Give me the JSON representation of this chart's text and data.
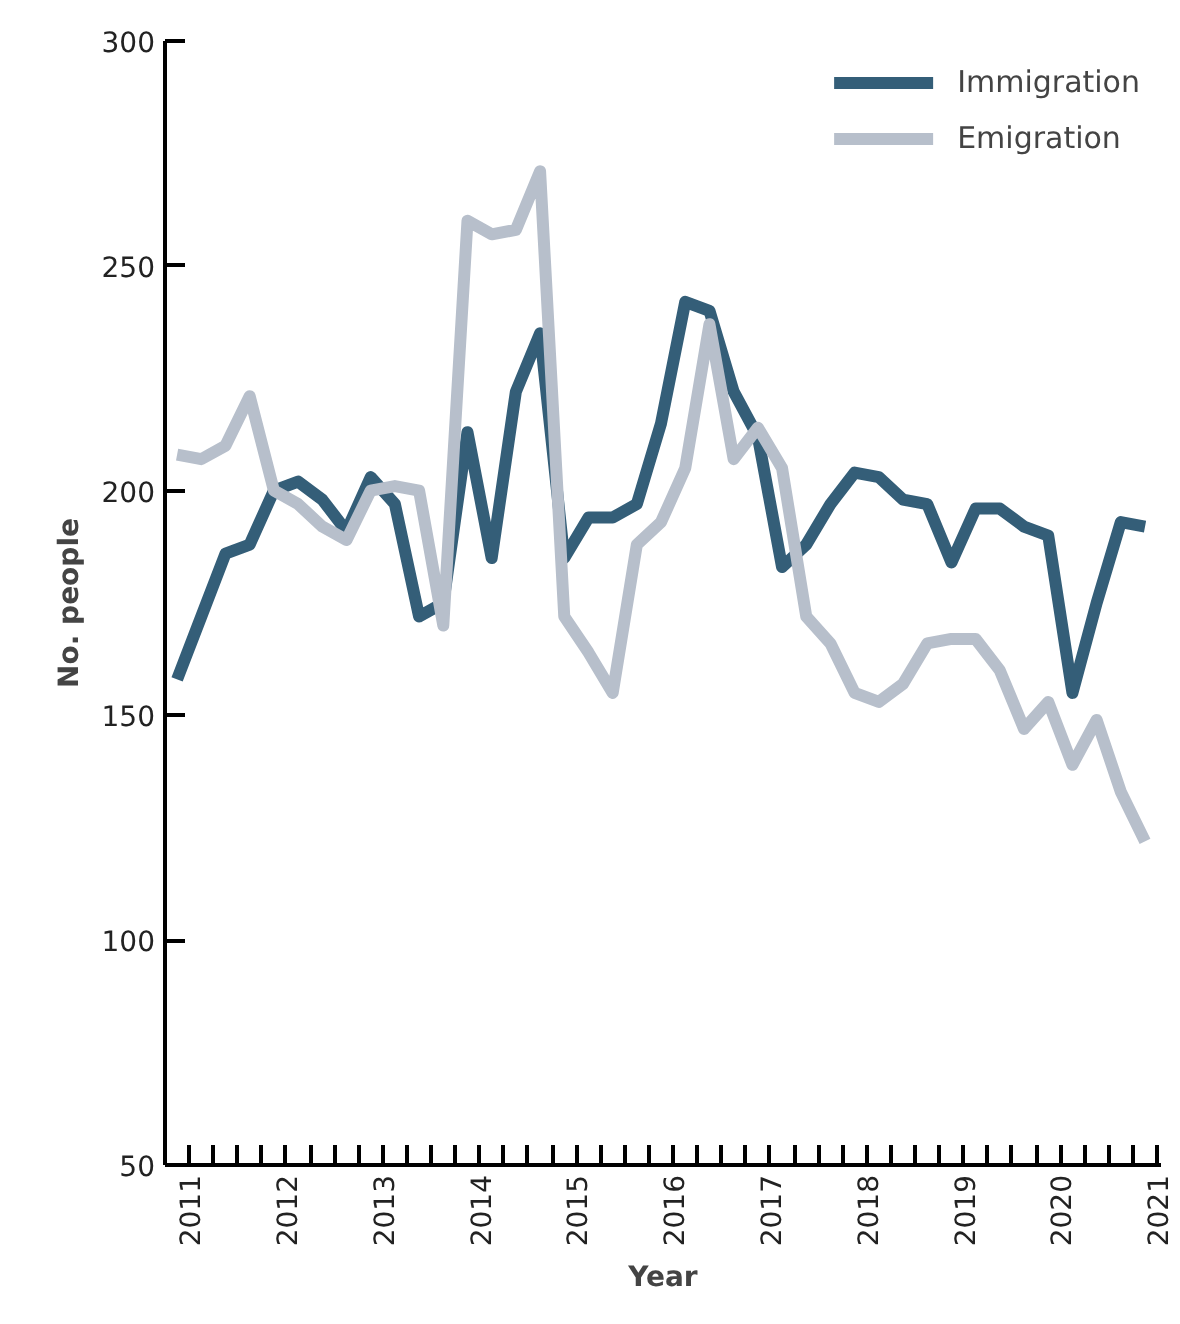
{
  "chart_data": {
    "type": "line",
    "xlabel": "Year",
    "ylabel": "No. people",
    "x": [
      2010.875,
      2011.125,
      2011.375,
      2011.625,
      2011.875,
      2012.125,
      2012.375,
      2012.625,
      2012.875,
      2013.125,
      2013.375,
      2013.625,
      2013.875,
      2014.125,
      2014.375,
      2014.625,
      2014.875,
      2015.125,
      2015.375,
      2015.625,
      2015.875,
      2016.125,
      2016.375,
      2016.625,
      2016.875,
      2017.125,
      2017.375,
      2017.625,
      2017.875,
      2018.125,
      2018.375,
      2018.625,
      2018.875,
      2019.125,
      2019.375,
      2019.625,
      2019.875,
      2020.125,
      2020.375,
      2020.625,
      2020.875
    ],
    "series": [
      {
        "name": "Immigration",
        "color": "#345e78",
        "values": [
          158,
          172,
          186,
          188,
          200,
          202,
          198,
          191,
          203,
          197,
          172,
          175,
          213,
          185,
          222,
          235,
          185,
          194,
          194,
          197,
          215,
          242,
          240,
          222,
          212,
          183,
          188,
          197,
          204,
          203,
          198,
          197,
          184,
          196,
          196,
          192,
          190,
          155,
          175,
          193,
          192
        ]
      },
      {
        "name": "Emigration",
        "color": "#b7bfcb",
        "values": [
          208,
          207,
          210,
          221,
          200,
          197,
          192,
          189,
          200,
          201,
          200,
          170,
          260,
          257,
          258,
          271,
          172,
          164,
          155,
          188,
          193,
          205,
          237,
          207,
          214,
          205,
          172,
          166,
          155,
          153,
          157,
          166,
          167,
          167,
          160,
          147,
          153,
          139,
          149,
          133,
          122
        ]
      }
    ],
    "xlim": [
      2010.75,
      2021.04
    ],
    "ylim": [
      50,
      300
    ],
    "xticks": [
      2011,
      {
        "value": 2011.25,
        "label": null
      },
      {
        "value": 2011.5,
        "label": null
      },
      {
        "value": 2011.75,
        "label": null
      },
      2012,
      {
        "value": 2012.25,
        "label": null
      },
      {
        "value": 2012.5,
        "label": null
      },
      {
        "value": 2012.75,
        "label": null
      },
      2013,
      {
        "value": 2013.25,
        "label": null
      },
      {
        "value": 2013.5,
        "label": null
      },
      {
        "value": 2013.75,
        "label": null
      },
      2014,
      {
        "value": 2014.25,
        "label": null
      },
      {
        "value": 2014.5,
        "label": null
      },
      {
        "value": 2014.75,
        "label": null
      },
      2015,
      {
        "value": 2015.25,
        "label": null
      },
      {
        "value": 2015.5,
        "label": null
      },
      {
        "value": 2015.75,
        "label": null
      },
      2016,
      {
        "value": 2016.25,
        "label": null
      },
      {
        "value": 2016.5,
        "label": null
      },
      {
        "value": 2016.75,
        "label": null
      },
      2017,
      {
        "value": 2017.25,
        "label": null
      },
      {
        "value": 2017.5,
        "label": null
      },
      {
        "value": 2017.75,
        "label": null
      },
      2018,
      {
        "value": 2018.25,
        "label": null
      },
      {
        "value": 2018.5,
        "label": null
      },
      {
        "value": 2018.75,
        "label": null
      },
      2019,
      {
        "value": 2019.25,
        "label": null
      },
      {
        "value": 2019.5,
        "label": null
      },
      {
        "value": 2019.75,
        "label": null
      },
      2020,
      {
        "value": 2020.25,
        "label": null
      },
      {
        "value": 2020.5,
        "label": null
      },
      {
        "value": 2020.75,
        "label": null
      },
      2021
    ],
    "yticks": [
      50,
      100,
      150,
      200,
      250,
      300
    ],
    "legend": "top right",
    "grid": false,
    "marker": "none",
    "line_style": "solid"
  }
}
